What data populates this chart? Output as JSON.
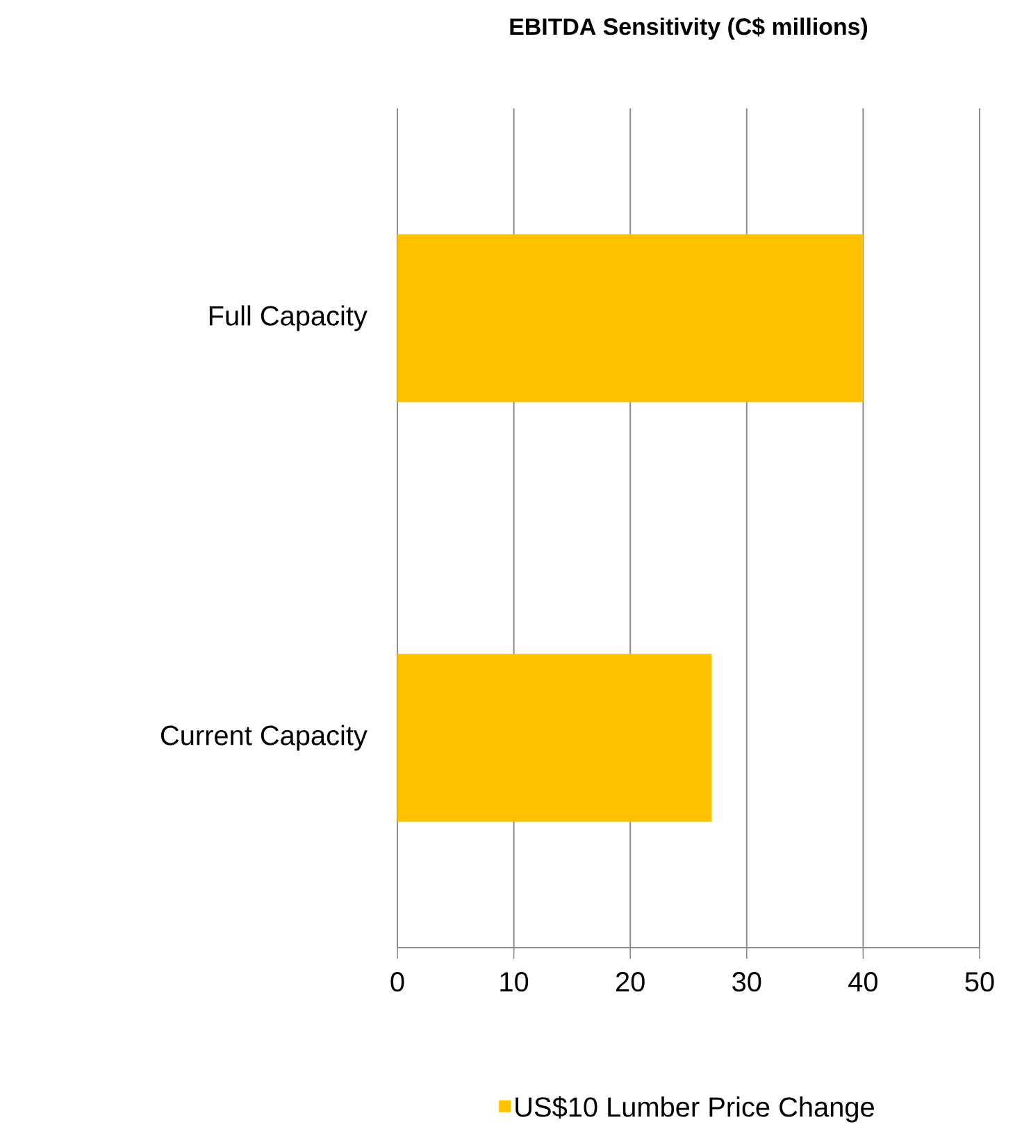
{
  "chart_data": {
    "type": "bar",
    "orientation": "horizontal",
    "title": "EBITDA Sensitivity (C$ millions)",
    "categories": [
      "Full Capacity",
      "Current Capacity"
    ],
    "series": [
      {
        "name": "US$10 Lumber Price Change",
        "color": "#ffc000",
        "values": [
          40,
          27
        ]
      }
    ],
    "xlim": [
      0,
      50
    ],
    "xticks": [
      0,
      10,
      20,
      30,
      40,
      50
    ],
    "grid": "x",
    "legend": "bottom"
  }
}
